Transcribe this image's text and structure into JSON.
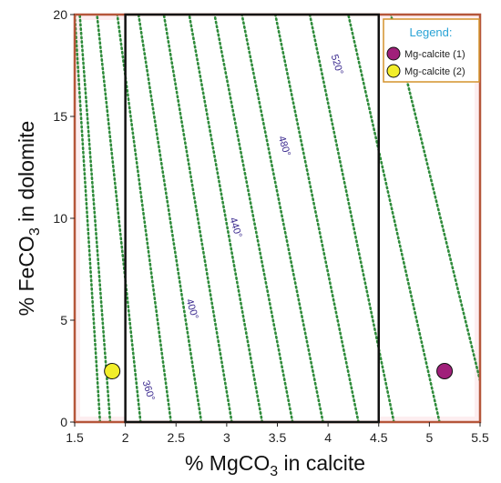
{
  "chart_data": {
    "type": "scatter",
    "xlabel": "% MgCO3 in calcite",
    "xlabel_parts": [
      "% MgCO",
      "3",
      " in calcite"
    ],
    "ylabel": "% FeCO3 in dolomite",
    "ylabel_parts": [
      "% FeCO",
      "3",
      " in dolomite"
    ],
    "xlim": [
      1.5,
      5.5
    ],
    "ylim": [
      0,
      20
    ],
    "x_ticks": [
      1.5,
      2,
      2.5,
      3,
      3.5,
      4,
      4.5,
      5,
      5.5
    ],
    "y_ticks": [
      0,
      5,
      10,
      15,
      20
    ],
    "legend": {
      "title": "Legend:",
      "placement": "top-right",
      "entries": [
        {
          "label": "Mg-calcite (1)",
          "color": "#a0207a"
        },
        {
          "label": "Mg-calcite (2)",
          "color": "#f2ee2a"
        }
      ]
    },
    "series": [
      {
        "name": "Mg-calcite (1)",
        "color": "#a0207a",
        "points": [
          {
            "x": 5.15,
            "y": 2.5
          }
        ]
      },
      {
        "name": "Mg-calcite (2)",
        "color": "#f2ee2a",
        "points": [
          {
            "x": 1.87,
            "y": 2.5
          }
        ]
      }
    ],
    "isotherms": {
      "color": "#2e8b3a",
      "lines": [
        {
          "x0": 1.75,
          "x1": 1.5
        },
        {
          "x0": 1.85,
          "x1": 1.55
        },
        {
          "x0": 2.15,
          "x1": 1.72
        },
        {
          "x0": 2.45,
          "x1": 1.92
        },
        {
          "x0": 2.75,
          "x1": 2.13
        },
        {
          "x0": 3.05,
          "x1": 2.38
        },
        {
          "x0": 3.35,
          "x1": 2.63
        },
        {
          "x0": 3.65,
          "x1": 2.88
        },
        {
          "x0": 3.95,
          "x1": 3.15
        },
        {
          "x0": 4.3,
          "x1": 3.48
        },
        {
          "x0": 4.65,
          "x1": 3.82
        },
        {
          "x0": 5.1,
          "x1": 4.2
        },
        {
          "x0": 5.6,
          "x1": 4.62
        }
      ],
      "labels": [
        {
          "text": "360°",
          "x": 2.2,
          "y": 1.5
        },
        {
          "text": "400°",
          "x": 2.63,
          "y": 5.5
        },
        {
          "text": "440°",
          "x": 3.06,
          "y": 9.5
        },
        {
          "text": "480°",
          "x": 3.54,
          "y": 13.5
        },
        {
          "text": "520°",
          "x": 4.06,
          "y": 17.5
        }
      ]
    },
    "regions": [
      {
        "x0": 2.0,
        "x1": 4.5,
        "y0": 0,
        "y1": 20,
        "stroke": "#111111"
      },
      {
        "x0": 1.5,
        "x1": 5.5,
        "y0": 0,
        "y1": 20,
        "stroke": "#b5563a"
      }
    ]
  }
}
